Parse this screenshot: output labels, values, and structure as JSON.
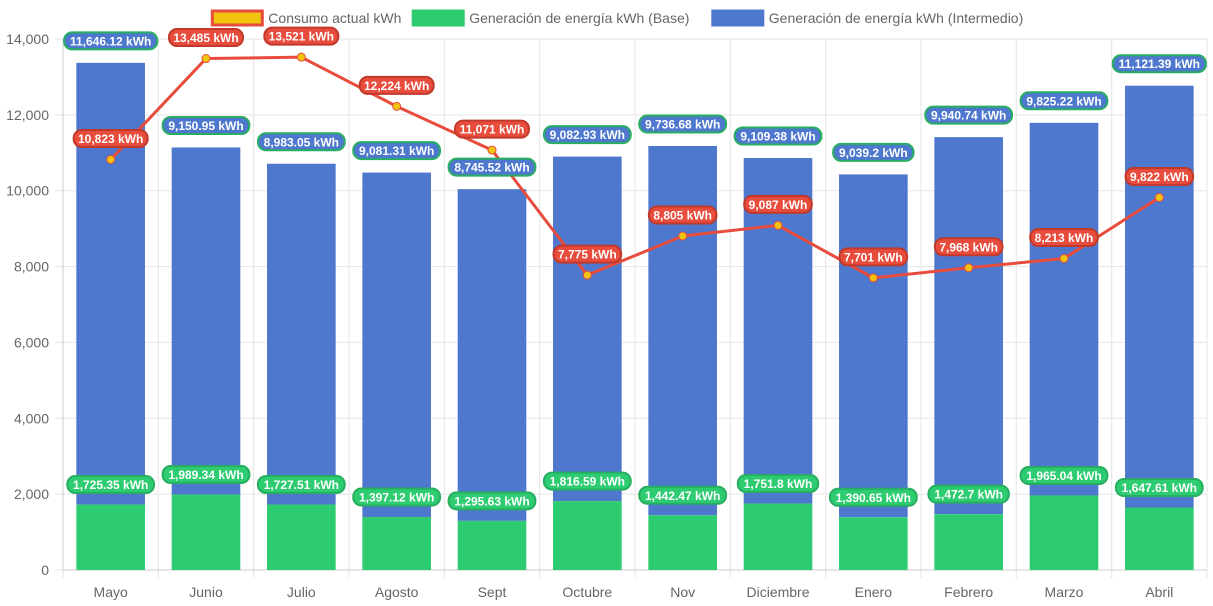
{
  "chart_data": {
    "type": "bar",
    "title": "",
    "xlabel": "",
    "ylabel": "",
    "ylim": [
      0,
      14000
    ],
    "y_ticks": [
      "0",
      "2,000",
      "4,000",
      "6,000",
      "8,000",
      "10,000",
      "12,000",
      "14,000"
    ],
    "y_tick_values": [
      0,
      2000,
      4000,
      6000,
      8000,
      10000,
      12000,
      14000
    ],
    "grid": true,
    "stacked": true,
    "legend_position": "top-center",
    "categories": [
      "Mayo",
      "Junio",
      "Julio",
      "Agosto",
      "Sept",
      "Octubre",
      "Nov",
      "Diciembre",
      "Enero",
      "Febrero",
      "Marzo",
      "Abril"
    ],
    "series": [
      {
        "name": "Consumo actual kWh",
        "type": "line",
        "color": "#e74c3c",
        "point_color": "#f1c40f",
        "values": [
          10823,
          13485,
          13521,
          12224,
          11071,
          7775,
          8805,
          9087,
          7701,
          7968,
          8213,
          9822
        ],
        "labels": [
          "10,823 kWh",
          "13,485 kWh",
          "13,521 kWh",
          "12,224 kWh",
          "11,071 kWh",
          "7,775 kWh",
          "8,805 kWh",
          "9,087 kWh",
          "7,701 kWh",
          "7,968 kWh",
          "8,213 kWh",
          "9,822 kWh"
        ]
      },
      {
        "name": "Generación de energía kWh (Base)",
        "type": "bar",
        "color": "#2ecc71",
        "values": [
          1725.35,
          1989.34,
          1727.51,
          1397.12,
          1295.63,
          1816.59,
          1442.47,
          1751.8,
          1390.65,
          1472.7,
          1965.04,
          1647.61
        ],
        "labels": [
          "1,725.35 kWh",
          "1,989.34 kWh",
          "1,727.51 kWh",
          "1,397.12 kWh",
          "1,295.63 kWh",
          "1,816.59 kWh",
          "1,442.47 kWh",
          "1,751.8 kWh",
          "1,390.65 kWh",
          "1,472.7 kWh",
          "1,965.04 kWh",
          "1,647.61 kWh"
        ]
      },
      {
        "name": "Generación de energía kWh (Intermedio)",
        "type": "bar",
        "color": "#4e78cd",
        "values": [
          11646.12,
          9150.95,
          8983.05,
          9081.31,
          8745.52,
          9082.93,
          9736.68,
          9109.38,
          9039.2,
          9940.74,
          9825.22,
          11121.39
        ],
        "labels": [
          "11,646.12 kWh",
          "9,150.95 kWh",
          "8,983.05 kWh",
          "9,081.31 kWh",
          "8,745.52 kWh",
          "9,082.93 kWh",
          "9,736.68 kWh",
          "9,109.38 kWh",
          "9,039.2 kWh",
          "9,940.74 kWh",
          "9,825.22 kWh",
          "11,121.39 kWh"
        ]
      }
    ],
    "legend": [
      {
        "label": "Consumo actual kWh",
        "fill": "#f1c40f",
        "stroke": "#e74c3c"
      },
      {
        "label": "Generación de energía kWh (Base)",
        "fill": "#2ecc71",
        "stroke": "#2ecc71"
      },
      {
        "label": "Generación de energía kWh (Intermedio)",
        "fill": "#4e78cd",
        "stroke": "#4e78cd"
      }
    ]
  }
}
